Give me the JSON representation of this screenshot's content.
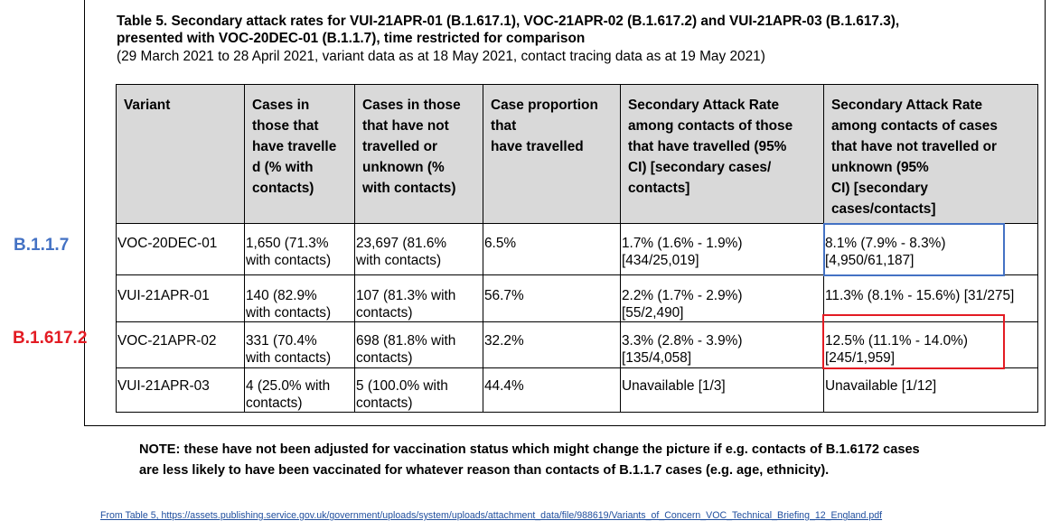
{
  "title": {
    "line1": "Table 5. Secondary attack rates for VUI-21APR-01 (B.1.617.1), VOC-21APR-02 (B.1.617.2) and VUI-21APR-03 (B.1.617.3),",
    "line2": "presented with VOC-20DEC-01 (B.1.1.7), time restricted for comparison",
    "subtitle": "(29 March 2021 to 28 April 2021, variant data as at 18 May 2021, contact tracing data as at 19 May 2021)"
  },
  "table": {
    "headers": [
      [
        "Variant"
      ],
      [
        "Cases in",
        "those that",
        "have travelle",
        "d (% with",
        "contacts)"
      ],
      [
        "Cases in those",
        "that have not",
        "travelled or",
        "unknown (%",
        "with contacts)"
      ],
      [
        "Case proportion",
        "that",
        "have travelled"
      ],
      [
        "Secondary Attack Rate",
        "among contacts of those",
        "that have travelled (95%",
        "CI) [secondary cases/",
        "contacts]"
      ],
      [
        "Secondary Attack Rate",
        "among contacts of cases",
        "that have not travelled or",
        "unknown (95%",
        "CI) [secondary",
        "cases/contacts]"
      ]
    ],
    "rows": [
      [
        [
          "VOC-20DEC-01"
        ],
        [
          "1,650 (71.3%",
          "with contacts)"
        ],
        [
          "23,697 (81.6%",
          "with contacts)"
        ],
        [
          "6.5%"
        ],
        [
          "1.7% (1.6% - 1.9%)",
          "[434/25,019]"
        ],
        [
          "8.1% (7.9% - 8.3%)",
          "[4,950/61,187]"
        ]
      ],
      [
        [
          "VUI-21APR-01"
        ],
        [
          "140 (82.9%",
          "with contacts)"
        ],
        [
          "107 (81.3% with",
          "contacts)"
        ],
        [
          "56.7%"
        ],
        [
          "2.2% (1.7% - 2.9%)",
          "[55/2,490]"
        ],
        [
          "11.3% (8.1% - 15.6%) [31/275]"
        ]
      ],
      [
        [
          "VOC-21APR-02"
        ],
        [
          "331 (70.4%",
          "with contacts)"
        ],
        [
          "698 (81.8% with",
          "contacts)"
        ],
        [
          "32.2%"
        ],
        [
          "3.3% (2.8% - 3.9%)",
          "[135/4,058]"
        ],
        [
          "12.5% (11.1% - 14.0%)",
          "[245/1,959]"
        ]
      ],
      [
        [
          "VUI-21APR-03"
        ],
        [
          "4 (25.0% with",
          "contacts)"
        ],
        [
          "5 (100.0% with",
          "contacts)"
        ],
        [
          "44.4%"
        ],
        [
          "Unavailable [1/3]"
        ],
        [
          "Unavailable [1/12]"
        ]
      ]
    ]
  },
  "annotations": {
    "label_b117": "B.1.1.7",
    "label_b16172": "B.1.617.2",
    "blue": "#4472c4",
    "red": "#e31b23"
  },
  "note": {
    "line1": "NOTE: these have not been adjusted for vaccination status which might change the picture if e.g. contacts of B.1.6172 cases",
    "line2": "are less likely to have been vaccinated for whatever reason than contacts of B.1.1.7 cases (e.g. age, ethnicity)."
  },
  "source": "From Table 5,  https://assets.publishing.service.gov.uk/government/uploads/system/uploads/attachment_data/file/988619/Variants_of_Concern_VOC_Technical_Briefing_12_England.pdf"
}
